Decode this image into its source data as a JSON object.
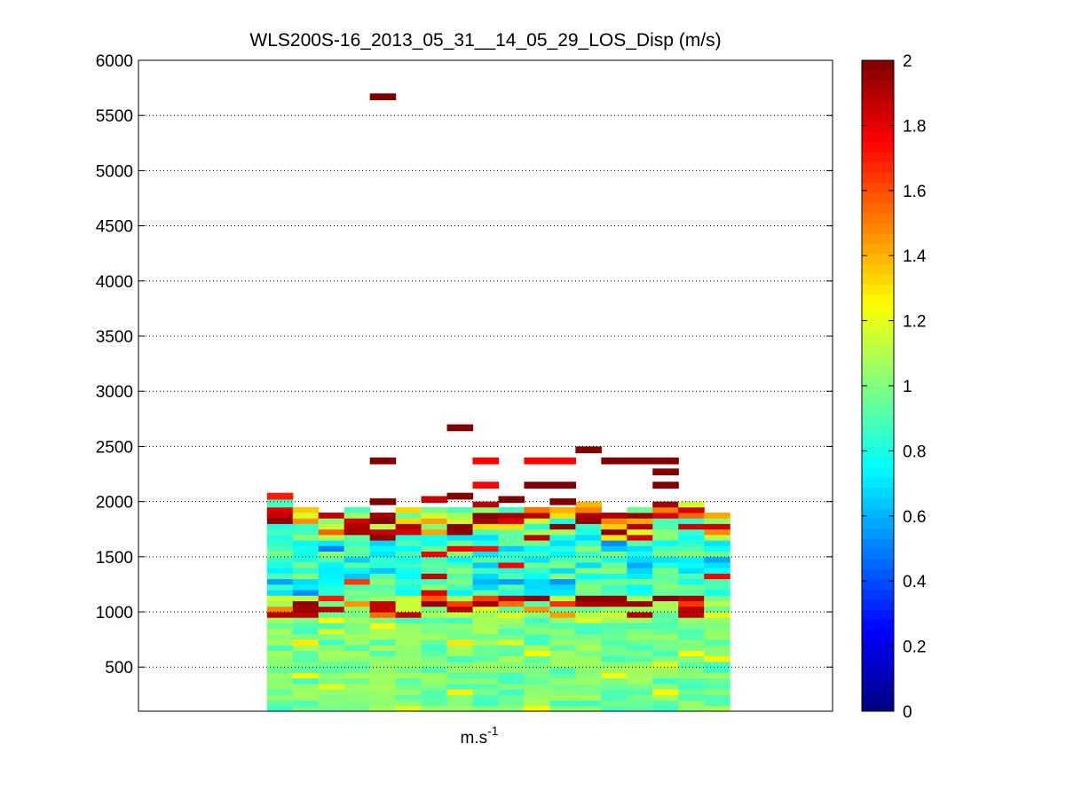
{
  "chart_data": {
    "type": "heatmap",
    "title": "WLS200S-16_2013_05_31__14_05_29_LOS_Disp (m/s)",
    "xlabel": "m.s",
    "xlabel_superscript": "-1",
    "ylabel": "",
    "ylim": [
      100,
      6000
    ],
    "y_ticks": [
      500,
      1000,
      1500,
      2000,
      2500,
      3000,
      3500,
      4000,
      4500,
      5000,
      5500,
      6000
    ],
    "x_ticks": [],
    "grid": "y-dotted",
    "colormap": "jet",
    "colorbar": {
      "range": [
        0,
        2
      ],
      "ticks": [
        "0",
        "0.2",
        "0.4",
        "0.6",
        "0.8",
        "1",
        "1.2",
        "1.4",
        "1.6",
        "1.8",
        "2"
      ]
    },
    "columns": 18,
    "data_column_range": [
      5,
      22
    ],
    "column_count_full_axis": 27,
    "gate_height_m": 50,
    "lower_layer_top_m": 1000,
    "aerosol_top_m": [
      2050,
      1930,
      1900,
      1950,
      1880,
      1920,
      1950,
      1950,
      1960,
      1950,
      1940,
      1930,
      1980,
      1900,
      1950,
      1990,
      1970,
      1900
    ],
    "outliers": [
      {
        "column": 4,
        "altitude_m": 5650,
        "value": 2.0
      },
      {
        "column": 4,
        "altitude_m": 2350,
        "value": 2.0
      },
      {
        "column": 4,
        "altitude_m": 1980,
        "value": 2.0
      },
      {
        "column": 0,
        "altitude_m": 2030,
        "value": 1.7
      },
      {
        "column": 6,
        "altitude_m": 2000,
        "value": 1.85
      },
      {
        "column": 7,
        "altitude_m": 2650,
        "value": 2.0
      },
      {
        "column": 7,
        "altitude_m": 2030,
        "value": 2.0
      },
      {
        "column": 8,
        "altitude_m": 2350,
        "value": 1.75
      },
      {
        "column": 8,
        "altitude_m": 2130,
        "value": 1.75
      },
      {
        "column": 9,
        "altitude_m": 2000,
        "value": 2.0
      },
      {
        "column": 10,
        "altitude_m": 2350,
        "value": 1.75
      },
      {
        "column": 10,
        "altitude_m": 2130,
        "value": 2.0
      },
      {
        "column": 11,
        "altitude_m": 2350,
        "value": 1.75
      },
      {
        "column": 11,
        "altitude_m": 2130,
        "value": 2.0
      },
      {
        "column": 11,
        "altitude_m": 1980,
        "value": 2.0
      },
      {
        "column": 12,
        "altitude_m": 2450,
        "value": 2.0
      },
      {
        "column": 13,
        "altitude_m": 2350,
        "value": 2.0
      },
      {
        "column": 14,
        "altitude_m": 2350,
        "value": 2.0
      },
      {
        "column": 15,
        "altitude_m": 2350,
        "value": 2.0
      },
      {
        "column": 15,
        "altitude_m": 2250,
        "value": 2.0
      },
      {
        "column": 15,
        "altitude_m": 2130,
        "value": 2.0
      }
    ]
  }
}
